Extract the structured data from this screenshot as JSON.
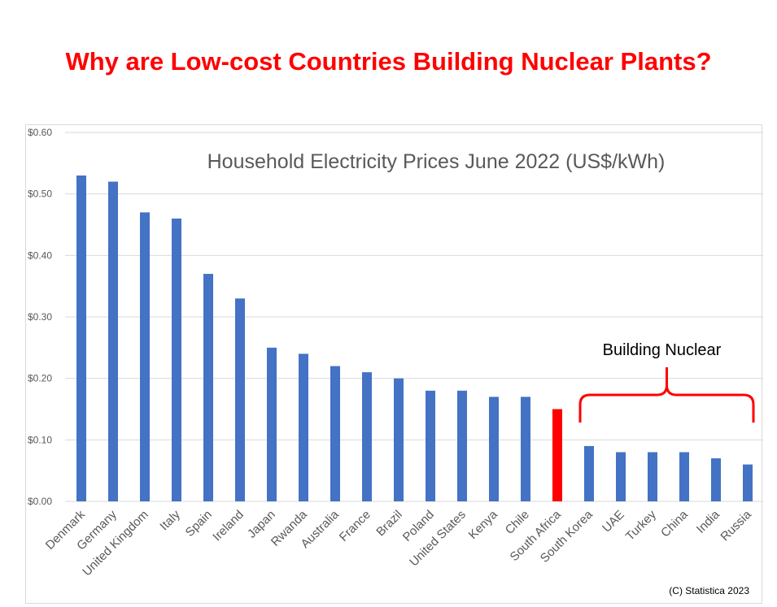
{
  "slide_title": "Why are Low-cost Countries Building Nuclear Plants?",
  "colors": {
    "title": "#ff0000",
    "bar_default": "#4472c4",
    "bar_highlight": "#ff0000",
    "bracket": "#ff0000",
    "grid": "#d9d9d9"
  },
  "chart_data": {
    "type": "bar",
    "title": "Household Electricity Prices June 2022 (US$/kWh)",
    "xlabel": "",
    "ylabel": "",
    "ylim": [
      0,
      0.6
    ],
    "yticks": [
      0.0,
      0.1,
      0.2,
      0.3,
      0.4,
      0.5,
      0.6
    ],
    "ytick_labels": [
      "$0.00",
      "$0.10",
      "$0.20",
      "$0.30",
      "$0.40",
      "$0.50",
      "$0.60"
    ],
    "grid": true,
    "categories": [
      "Denmark",
      "Germany",
      "United Kingdom",
      "Italy",
      "Spain",
      "Ireland",
      "Japan",
      "Rwanda",
      "Australia",
      "France",
      "Brazil",
      "Poland",
      "United States",
      "Kenya",
      "Chile",
      "South Africa",
      "South Korea",
      "UAE",
      "Turkey",
      "China",
      "India",
      "Russia"
    ],
    "values": [
      0.53,
      0.52,
      0.47,
      0.46,
      0.37,
      0.33,
      0.25,
      0.24,
      0.22,
      0.21,
      0.2,
      0.18,
      0.18,
      0.17,
      0.17,
      0.15,
      0.09,
      0.08,
      0.08,
      0.08,
      0.07,
      0.06
    ],
    "highlight_category": "South Africa",
    "annotations": [
      {
        "text": "Building Nuclear",
        "from_category": "South Korea",
        "to_category": "Russia"
      }
    ],
    "credit": "(C) Statistica 2023"
  }
}
